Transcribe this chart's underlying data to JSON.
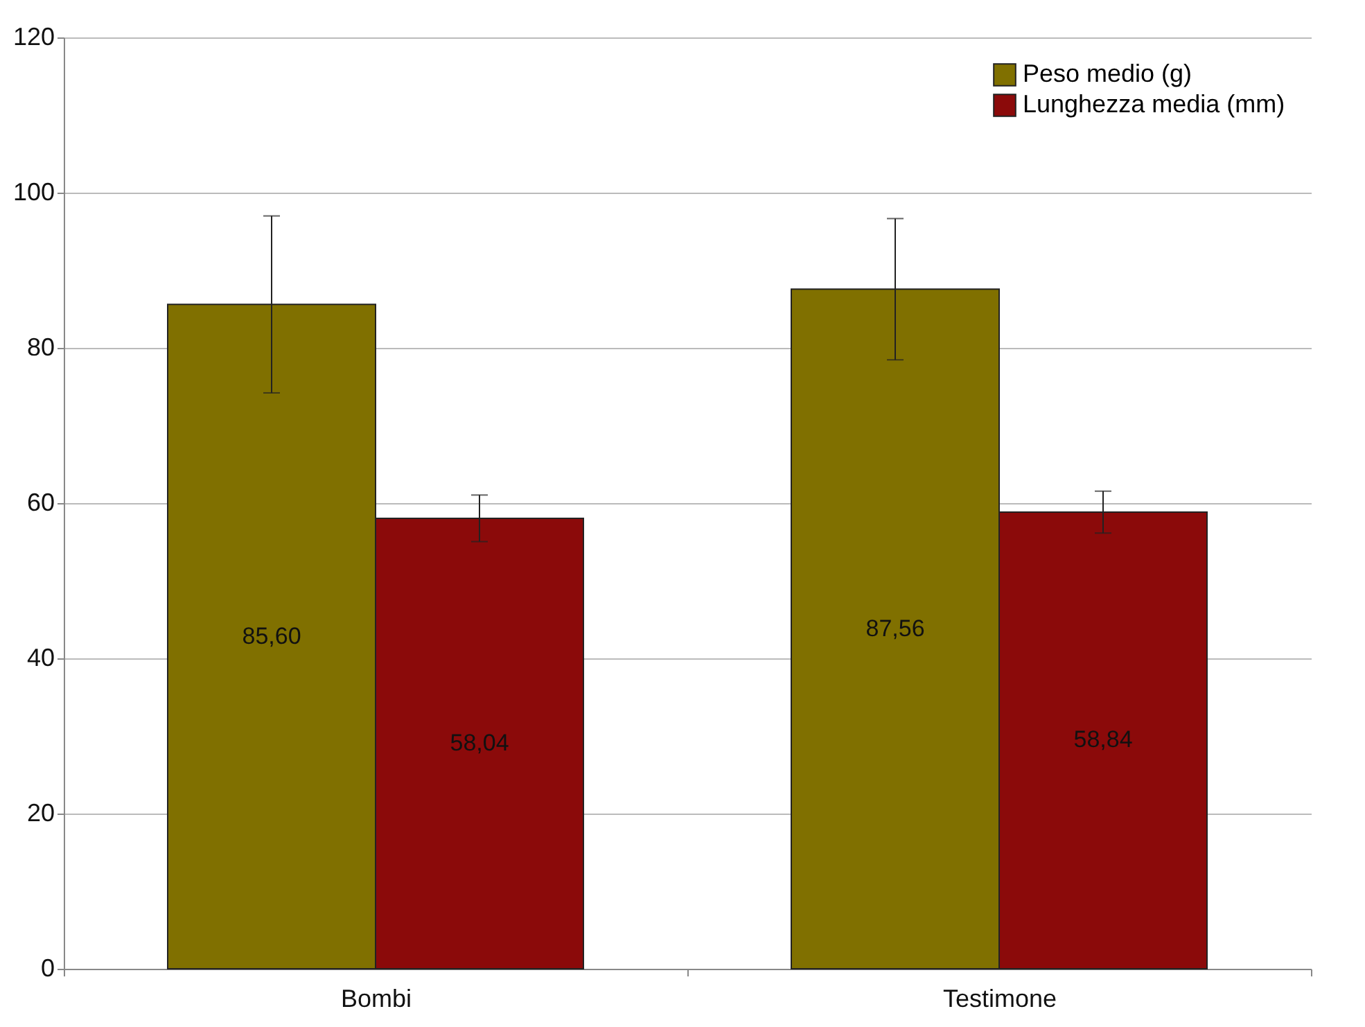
{
  "chart_data": {
    "type": "bar",
    "categories": [
      "Bombi",
      "Testimone"
    ],
    "series": [
      {
        "name": "Peso medio (g)",
        "color": "#807000",
        "values": [
          85.6,
          87.56
        ],
        "errors": [
          11.4,
          9.1
        ],
        "value_labels": [
          "85,60",
          "87,56"
        ]
      },
      {
        "name": "Lunghezza media (mm)",
        "color": "#8b0a0a",
        "values": [
          58.04,
          58.84
        ],
        "errors": [
          3,
          2.7
        ],
        "value_labels": [
          "58,04",
          "58,84"
        ]
      }
    ],
    "ylim": [
      0,
      120
    ],
    "yticks": [
      0,
      20,
      40,
      60,
      80,
      100,
      120
    ],
    "grid": "y",
    "legend": "top right"
  }
}
